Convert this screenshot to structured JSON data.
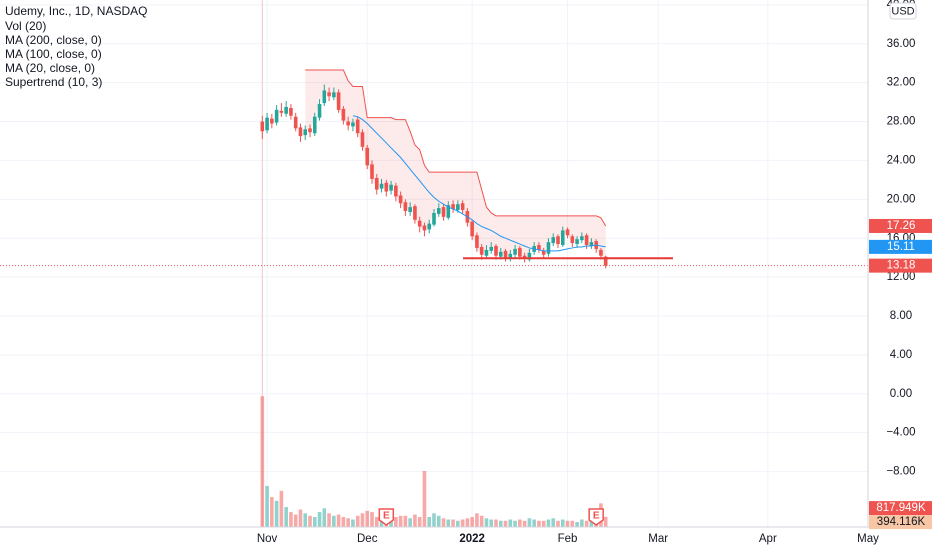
{
  "chart_data": {
    "type": "candlestick",
    "title": "Udemy, Inc., 1D, NASDAQ",
    "currency": "USD",
    "xlim": [
      -55,
      127
    ],
    "xticks": [
      {
        "value": 1,
        "label": "Nov"
      },
      {
        "value": 22,
        "label": "Dec"
      },
      {
        "value": 44,
        "label": "2022"
      },
      {
        "value": 64,
        "label": "Feb"
      },
      {
        "value": 83,
        "label": "Mar"
      },
      {
        "value": 106,
        "label": "Apr"
      },
      {
        "value": 127,
        "label": "May"
      }
    ],
    "ylim": [
      -13.7,
      40.5
    ],
    "yticks": [
      {
        "value": 40,
        "label": "40.00"
      },
      {
        "value": 36,
        "label": "36.00"
      },
      {
        "value": 32,
        "label": "32.00"
      },
      {
        "value": 28,
        "label": "28.00"
      },
      {
        "value": 24,
        "label": "24.00"
      },
      {
        "value": 20,
        "label": "20.00"
      },
      {
        "value": 16,
        "label": "16.00"
      },
      {
        "value": 12,
        "label": "12.00"
      },
      {
        "value": 8,
        "label": "8.00"
      },
      {
        "value": 4,
        "label": "4.00"
      },
      {
        "value": 0,
        "label": "0.00"
      },
      {
        "value": -4,
        "label": "−4.00"
      },
      {
        "value": -8,
        "label": "−8.00"
      }
    ],
    "grid": true,
    "candles": {
      "up_color": "#26a69a",
      "down_color": "#ef5350",
      "open": [
        28.0,
        27.1,
        28.3,
        27.9,
        29.1,
        28.8,
        29.4,
        28.5,
        27.4,
        26.6,
        27.3,
        26.8,
        28.4,
        29.9,
        31.0,
        30.5,
        31.0,
        29.3,
        28.0,
        27.5,
        28.2,
        26.9,
        25.3,
        23.6,
        22.2,
        21.1,
        21.7,
        20.9,
        21.4,
        20.4,
        19.7,
        18.7,
        19.3,
        17.8,
        17.3,
        16.9,
        17.4,
        18.5,
        19.2,
        18.1,
        19.5,
        18.9,
        19.6,
        18.8,
        17.7,
        16.3,
        15.1,
        14.2,
        14.7,
        15.2,
        14.1,
        14.7,
        13.9,
        14.3,
        15.0,
        14.2,
        13.8,
        14.6,
        15.3,
        14.7,
        14.4,
        15.5,
        16.2,
        15.3,
        16.9,
        16.2,
        15.4,
        15.8,
        16.3,
        15.2,
        15.7,
        14.8,
        14.1
      ],
      "high": [
        28.6,
        28.9,
        28.8,
        29.7,
        29.9,
        30.1,
        29.8,
        28.9,
        27.8,
        27.6,
        27.7,
        28.9,
        30.3,
        31.8,
        31.5,
        31.5,
        31.3,
        29.6,
        28.5,
        28.3,
        28.5,
        27.2,
        25.6,
        24.0,
        22.6,
        22.1,
        22.0,
        21.9,
        21.7,
        20.8,
        20.0,
        19.7,
        19.5,
        18.2,
        17.6,
        17.9,
        19.0,
        19.6,
        19.5,
        19.8,
        19.9,
        19.9,
        19.9,
        19.1,
        17.9,
        16.6,
        15.4,
        15.3,
        15.6,
        15.4,
        15.0,
        14.9,
        14.8,
        15.3,
        15.2,
        14.5,
        14.9,
        15.6,
        15.6,
        15.0,
        16.0,
        16.5,
        16.4,
        17.2,
        17.1,
        16.4,
        16.2,
        16.6,
        16.5,
        16.0,
        15.9,
        15.0,
        14.2
      ],
      "low": [
        26.2,
        26.8,
        27.3,
        27.6,
        28.5,
        28.5,
        28.2,
        27.0,
        25.9,
        26.1,
        26.4,
        26.5,
        28.1,
        29.6,
        30.1,
        30.2,
        28.9,
        27.7,
        27.1,
        27.0,
        26.4,
        25.0,
        23.1,
        21.6,
        20.5,
        20.7,
        20.3,
        20.5,
        19.8,
        19.1,
        18.3,
        18.3,
        17.5,
        16.6,
        16.2,
        16.5,
        17.2,
        18.2,
        17.8,
        17.9,
        18.6,
        18.6,
        18.5,
        17.2,
        15.8,
        14.6,
        13.8,
        13.9,
        14.4,
        13.8,
        13.8,
        13.6,
        13.6,
        14.0,
        13.8,
        13.5,
        13.6,
        14.3,
        14.5,
        13.9,
        14.1,
        15.2,
        15.0,
        15.1,
        16.0,
        15.1,
        15.0,
        15.5,
        14.9,
        14.9,
        14.5,
        13.8,
        12.9
      ],
      "close": [
        27.0,
        28.4,
        27.8,
        29.2,
        28.9,
        29.5,
        28.6,
        27.3,
        26.5,
        27.2,
        26.9,
        28.5,
        29.8,
        31.2,
        30.6,
        31.0,
        29.2,
        28.1,
        27.6,
        27.9,
        26.8,
        25.4,
        23.5,
        22.1,
        21.0,
        21.6,
        20.8,
        21.5,
        20.3,
        19.6,
        18.8,
        19.2,
        17.9,
        17.2,
        16.8,
        17.5,
        18.6,
        19.1,
        18.2,
        19.4,
        19.0,
        19.5,
        18.9,
        17.6,
        16.2,
        15.0,
        14.3,
        14.8,
        15.1,
        14.2,
        14.6,
        14.0,
        14.4,
        14.9,
        14.1,
        13.9,
        14.5,
        15.2,
        14.8,
        14.3,
        15.6,
        16.1,
        15.4,
        16.8,
        16.3,
        15.5,
        15.9,
        16.2,
        15.3,
        15.6,
        14.9,
        14.2,
        13.18
      ]
    },
    "vylim": [
      0,
      10600000
    ],
    "series": [
      {
        "name": "Vol (20)",
        "values": [
          10500000,
          3300000,
          2400000,
          2100000,
          2900000,
          1600000,
          1200000,
          1000000,
          1400000,
          1100000,
          900000,
          800000,
          1200000,
          1500000,
          1100000,
          900000,
          1000000,
          800000,
          700000,
          600000,
          900000,
          1100000,
          1300000,
          1200000,
          800000,
          900000,
          1000000,
          700000,
          800000,
          900000,
          900000,
          700000,
          1000000,
          800000,
          4500000,
          800000,
          1100000,
          900000,
          700000,
          600000,
          600000,
          500000,
          600000,
          700000,
          800000,
          1100000,
          900000,
          700000,
          600000,
          600000,
          500000,
          500000,
          600000,
          500000,
          600000,
          500000,
          700000,
          600000,
          500000,
          500000,
          600000,
          700000,
          500000,
          600000,
          500000,
          500000,
          400000,
          600000,
          500000,
          600000,
          500000,
          1900000,
          817949
        ],
        "value_labels": [
          null,
          null,
          null,
          null,
          null,
          null,
          null,
          null,
          null,
          null,
          null,
          null,
          null,
          null,
          null,
          null,
          null,
          null,
          null,
          null,
          null,
          null,
          null,
          null,
          null,
          null,
          null,
          null,
          null,
          null,
          null,
          null,
          null,
          null,
          null,
          null,
          null,
          null,
          null,
          null,
          null,
          null,
          null,
          null,
          null,
          null,
          null,
          null,
          null,
          null,
          null,
          null,
          null,
          null,
          null,
          null,
          null,
          null,
          null,
          null,
          null,
          null,
          null,
          null,
          null,
          null,
          null,
          null,
          null,
          null,
          null,
          null,
          "817.949K"
        ],
        "ma": {
          "value": 394116,
          "label": "394.116K"
        },
        "ma_color": "#f7c6a5"
      },
      {
        "name": "MA (200, close, 0)"
      },
      {
        "name": "MA (100, close, 0)"
      },
      {
        "name": "MA (20, close, 0)",
        "color": "#2196f3",
        "values": [
          null,
          null,
          null,
          null,
          null,
          null,
          null,
          null,
          null,
          null,
          null,
          null,
          null,
          null,
          null,
          null,
          null,
          null,
          null,
          28.6,
          28.5,
          28.2,
          27.8,
          27.3,
          26.8,
          26.3,
          25.8,
          25.3,
          24.8,
          24.3,
          23.7,
          23.1,
          22.5,
          21.9,
          21.3,
          20.7,
          20.2,
          19.8,
          19.5,
          19.2,
          19.0,
          18.8,
          18.5,
          18.2,
          17.9,
          17.5,
          17.2,
          17.0,
          16.8,
          16.5,
          16.2,
          16.0,
          15.8,
          15.6,
          15.4,
          15.2,
          15.0,
          14.9,
          14.8,
          14.7,
          14.7,
          14.7,
          14.7,
          14.8,
          14.9,
          15.0,
          15.1,
          15.1,
          15.2,
          15.2,
          15.3,
          15.2,
          15.11
        ]
      },
      {
        "name": "Supertrend (10, 3)",
        "color": "#ef5350",
        "fill_color": "rgba(239,83,80,0.12)",
        "values": [
          null,
          null,
          null,
          null,
          null,
          null,
          null,
          null,
          null,
          33.3,
          33.3,
          33.3,
          33.3,
          33.3,
          33.3,
          33.3,
          33.3,
          33.3,
          32.2,
          31.6,
          31.6,
          31.6,
          28.4,
          28.4,
          28.4,
          28.4,
          28.4,
          28.4,
          28.2,
          28.2,
          28.2,
          27.0,
          25.6,
          25.1,
          23.5,
          22.8,
          22.8,
          22.8,
          22.8,
          22.8,
          22.8,
          22.8,
          22.8,
          22.8,
          22.8,
          22.8,
          21.0,
          19.2,
          18.6,
          18.3,
          18.3,
          18.3,
          18.3,
          18.3,
          18.3,
          18.3,
          18.3,
          18.3,
          18.3,
          18.3,
          18.3,
          18.3,
          18.3,
          18.3,
          18.3,
          18.3,
          18.3,
          18.3,
          18.3,
          18.3,
          18.3,
          18.1,
          17.26
        ]
      }
    ],
    "events": [
      {
        "label": "E",
        "x": 26
      },
      {
        "label": "E",
        "x": 70
      }
    ],
    "drawn_line": {
      "y": 13.94,
      "color": "#e53935"
    }
  }
}
